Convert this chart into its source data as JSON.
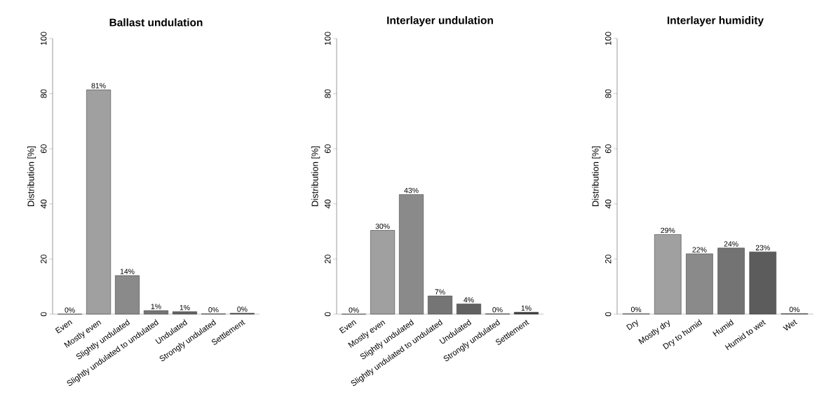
{
  "chart_data": [
    {
      "type": "bar",
      "title": "Ballast undulation",
      "ylabel": "Distribution [%]",
      "categories": [
        "Even",
        "Mostly even",
        "Slightly undulated",
        "Slightly undulated to undulated",
        "Undulated",
        "Strongly undulated",
        "Settlement"
      ],
      "values": [
        0,
        81.4,
        14.0,
        1.3,
        0.9,
        0.1,
        0.3
      ],
      "value_labels": [
        "0%",
        "81%",
        "14%",
        "1%",
        "1%",
        "0%",
        "0%"
      ],
      "colors": [
        "#e6e6e6",
        "#a0a0a0",
        "#8a8a8a",
        "#757575",
        "#626262",
        "#4f4f4f",
        "#3c3c3c"
      ],
      "ylim": [
        0,
        100
      ],
      "yticks": [
        0,
        20,
        40,
        60,
        80,
        100
      ]
    },
    {
      "type": "bar",
      "title": "Interlayer undulation",
      "ylabel": "Distribution [%]",
      "categories": [
        "Even",
        "Mostly even",
        "Slightly undulated",
        "Slightly undulated to undulated",
        "Undulated",
        "Strongly undulated",
        "Settlement"
      ],
      "values": [
        0,
        30.4,
        43.4,
        6.6,
        3.7,
        0.1,
        0.7
      ],
      "value_labels": [
        "0%",
        "30%",
        "43%",
        "7%",
        "4%",
        "0%",
        "1%"
      ],
      "colors": [
        "#e6e6e6",
        "#a0a0a0",
        "#8a8a8a",
        "#757575",
        "#626262",
        "#4f4f4f",
        "#3c3c3c"
      ],
      "ylim": [
        0,
        100
      ],
      "yticks": [
        0,
        20,
        40,
        60,
        80,
        100
      ]
    },
    {
      "type": "bar",
      "title": "Interlayer humidity",
      "ylabel": "Distribution [%]",
      "categories": [
        "Dry",
        "Mostly dry",
        "Dry to humid",
        "Humid",
        "Humid to wet",
        "Wet"
      ],
      "values": [
        0.2,
        28.9,
        21.9,
        24.0,
        22.6,
        0.2
      ],
      "value_labels": [
        "0%",
        "29%",
        "22%",
        "24%",
        "23%",
        "0%"
      ],
      "colors": [
        "#bdbdbd",
        "#a0a0a0",
        "#8a8a8a",
        "#737373",
        "#5c5c5c",
        "#4a4a4a"
      ],
      "ylim": [
        0,
        100
      ],
      "yticks": [
        0,
        20,
        40,
        60,
        80,
        100
      ]
    }
  ]
}
